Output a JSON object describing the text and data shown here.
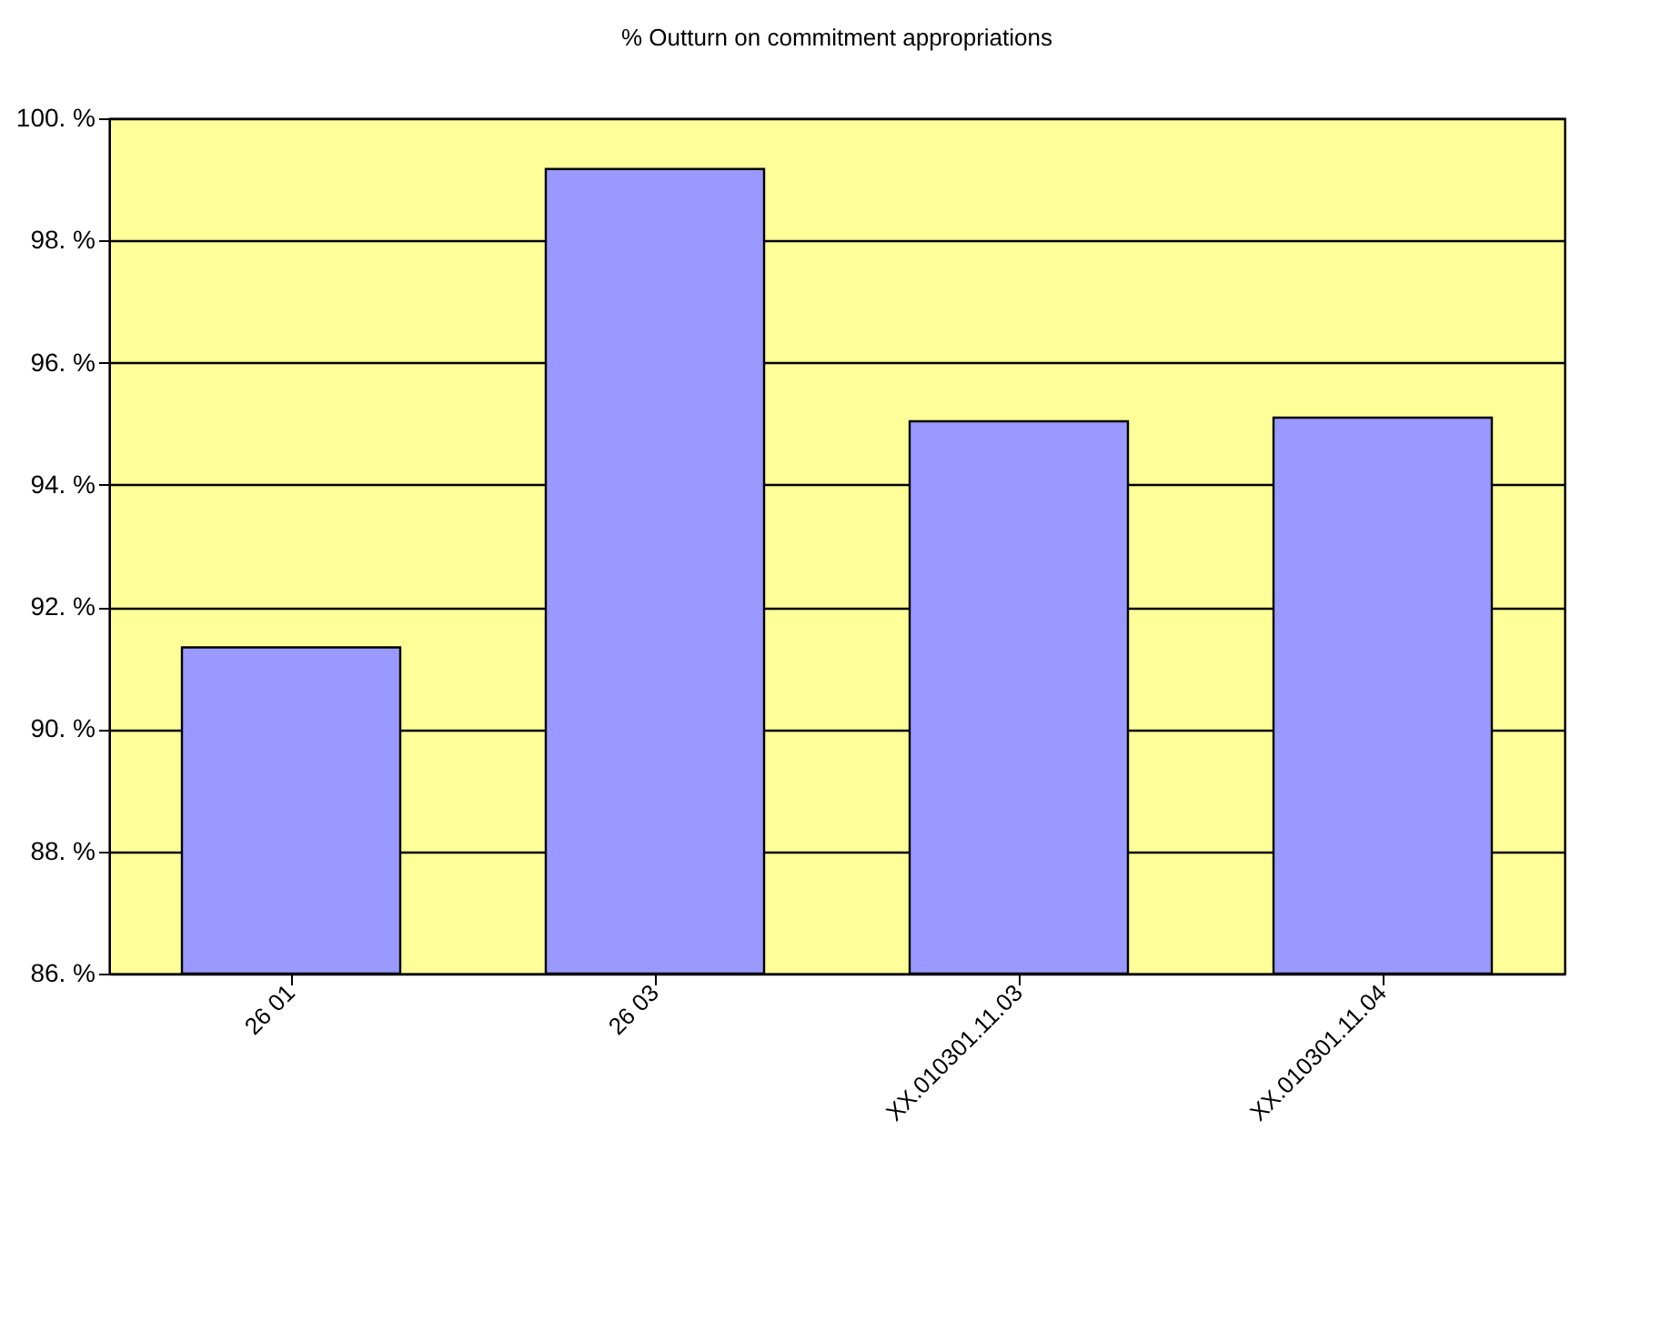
{
  "chart_data": {
    "type": "bar",
    "title": "% Outturn on commitment appropriations",
    "categories": [
      "26 01",
      "26 03",
      "XX.010301.11.03",
      "XX.010301.11.04"
    ],
    "values": [
      91.34,
      99.17,
      95.04,
      95.1
    ],
    "color": "#9999ff",
    "ylim": [
      86,
      100
    ],
    "yticks": [
      {
        "value": 86,
        "label": "86. %"
      },
      {
        "value": 88,
        "label": "88. %"
      },
      {
        "value": 90,
        "label": "90. %"
      },
      {
        "value": 92,
        "label": "92. %"
      },
      {
        "value": 94,
        "label": "94. %"
      },
      {
        "value": 96,
        "label": "96. %"
      },
      {
        "value": 98,
        "label": "98. %"
      },
      {
        "value": 100,
        "label": "100. %"
      }
    ],
    "grid": "y"
  }
}
